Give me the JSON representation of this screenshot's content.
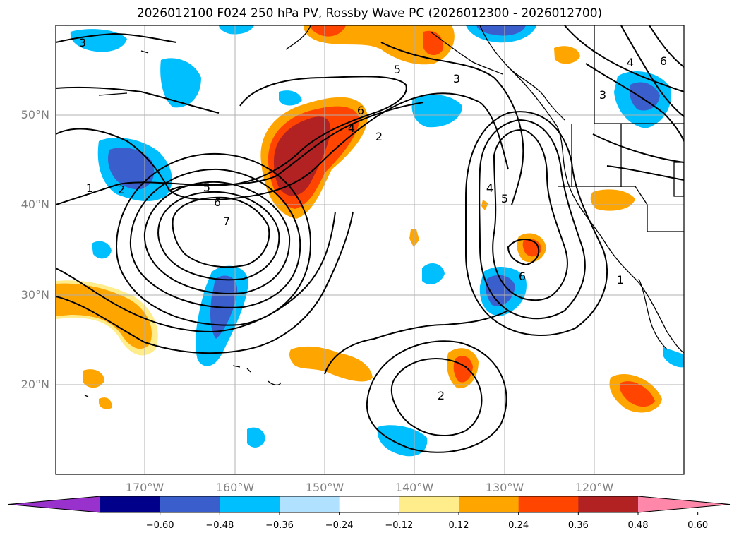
{
  "title": "2026012100 F024 250 hPa PV, Rossby Wave PC (2026012300 - 2026012700)",
  "lat_labels": [
    "50°N",
    "40°N",
    "30°N",
    "20°N"
  ],
  "lon_labels": [
    "170°W",
    "160°W",
    "150°W",
    "140°W",
    "130°W",
    "120°W"
  ],
  "colorbar": {
    "ticks": [
      "−0.60",
      "−0.48",
      "−0.36",
      "−0.24",
      "−0.12",
      "0.12",
      "0.24",
      "0.36",
      "0.48",
      "0.60"
    ],
    "colors": [
      "#9932CC",
      "#00008B",
      "#3A5FCD",
      "#00BFFF",
      "#B0E2FF",
      "#FFFFFF",
      "#FFEC8B",
      "#FFA500",
      "#FF4500",
      "#B22222",
      "#FF88AA"
    ]
  },
  "contour_labels": [
    "3",
    "5",
    "3",
    "6",
    "4",
    "2",
    "5",
    "6",
    "7",
    "1",
    "2",
    "4",
    "5",
    "6",
    "2",
    "1",
    "4",
    "6",
    "3"
  ]
}
